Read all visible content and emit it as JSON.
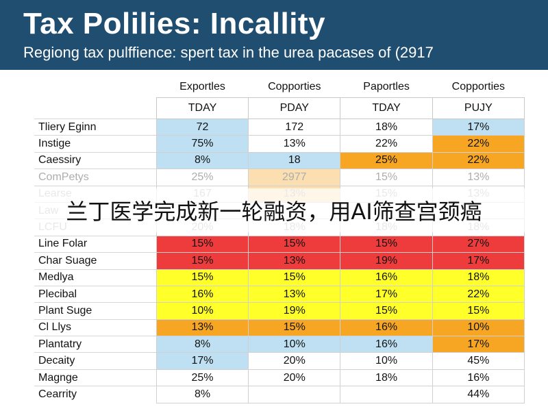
{
  "header": {
    "title": "Tax Polilies: Incallity",
    "subtitle": "Regiong tax pulffience: spert tax in the urea pacases of (2917"
  },
  "banner": {
    "text": "兰丁医学完成新一轮融资，用AI筛查宫颈癌"
  },
  "colors": {
    "header_bg": "#1f4e70",
    "blue": "#bfe0f2",
    "orange": "#f6a623",
    "red": "#ee3b3b",
    "yellow": "#ffff2a",
    "white": "#ffffff"
  },
  "chart_data": {
    "type": "table",
    "title": "Tax Polilies: Incallity",
    "subtitle": "Regiong tax pulffience: spert tax in the urea pacases of (2917",
    "column_groups": [
      "Exportles",
      "Copporties",
      "Paportles",
      "Copporties"
    ],
    "column_subheaders": [
      "TDAY",
      "PDAY",
      "TDAY",
      "PUJY"
    ],
    "rows": [
      {
        "label": "Tliery Eginn",
        "values": [
          "72",
          "172",
          "18%",
          "17%"
        ],
        "colors": [
          "blue",
          "white",
          "white",
          "blue"
        ]
      },
      {
        "label": "Instige",
        "values": [
          "75%",
          "13%",
          "22%",
          "22%"
        ],
        "colors": [
          "blue",
          "white",
          "white",
          "orange"
        ]
      },
      {
        "label": "Caessiry",
        "values": [
          "8%",
          "18",
          "25%",
          "22%"
        ],
        "colors": [
          "blue",
          "blue",
          "orange",
          "orange"
        ]
      },
      {
        "label": "ComPetys",
        "values": [
          "25%",
          "2977",
          "15%",
          "13%"
        ],
        "colors": [
          "white",
          "orange",
          "white",
          "white"
        ],
        "faded": true
      },
      {
        "label": "Learse",
        "values": [
          "167",
          "13%",
          "15%",
          "13%"
        ],
        "colors": [
          "white",
          "orange",
          "white",
          "white"
        ],
        "faded": true
      },
      {
        "label": "Law",
        "values": [
          "",
          "",
          "",
          ""
        ],
        "colors": [
          "white",
          "white",
          "white",
          "white"
        ],
        "faded": true
      },
      {
        "label": "LCFU",
        "values": [
          "20%",
          "18%",
          "18%",
          "18%"
        ],
        "colors": [
          "white",
          "white",
          "white",
          "white"
        ],
        "faded": true
      },
      {
        "label": "Line Folar",
        "values": [
          "15%",
          "15%",
          "15%",
          "27%"
        ],
        "colors": [
          "red",
          "red",
          "red",
          "red"
        ]
      },
      {
        "label": "Char Suage",
        "values": [
          "15%",
          "13%",
          "19%",
          "17%"
        ],
        "colors": [
          "red",
          "red",
          "red",
          "red"
        ]
      },
      {
        "label": "Medlya",
        "values": [
          "15%",
          "15%",
          "16%",
          "18%"
        ],
        "colors": [
          "yellow",
          "yellow",
          "yellow",
          "yellow"
        ]
      },
      {
        "label": "Plecibal",
        "values": [
          "16%",
          "13%",
          "17%",
          "22%"
        ],
        "colors": [
          "yellow",
          "yellow",
          "yellow",
          "yellow"
        ]
      },
      {
        "label": "Plant Suge",
        "values": [
          "10%",
          "19%",
          "15%",
          "15%"
        ],
        "colors": [
          "yellow",
          "yellow",
          "yellow",
          "yellow"
        ]
      },
      {
        "label": "Cl Llys",
        "values": [
          "13%",
          "15%",
          "16%",
          "10%"
        ],
        "colors": [
          "orange",
          "orange",
          "orange",
          "orange"
        ]
      },
      {
        "label": "Plantatry",
        "values": [
          "8%",
          "10%",
          "16%",
          "17%"
        ],
        "colors": [
          "blue",
          "blue",
          "blue",
          "orange"
        ]
      },
      {
        "label": "Decaity",
        "values": [
          "17%",
          "20%",
          "10%",
          "45%"
        ],
        "colors": [
          "blue",
          "white",
          "white",
          "white"
        ]
      },
      {
        "label": "Magnge",
        "values": [
          "25%",
          "20%",
          "18%",
          "16%"
        ],
        "colors": [
          "white",
          "white",
          "white",
          "white"
        ]
      },
      {
        "label": "Cearrity",
        "values": [
          "8%",
          "",
          "",
          "44%"
        ],
        "colors": [
          "white",
          "white",
          "white",
          "white"
        ]
      }
    ]
  }
}
